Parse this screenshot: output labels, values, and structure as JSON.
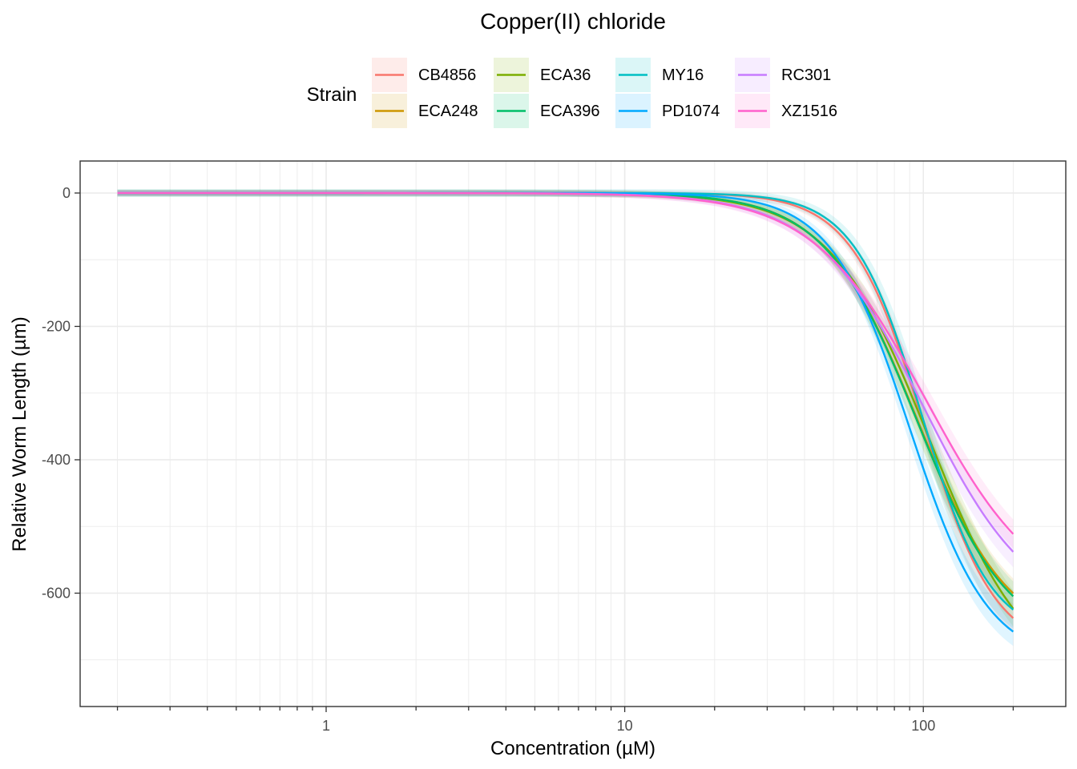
{
  "chart_data": {
    "type": "line",
    "title": "Copper(II) chloride",
    "xlabel": "Concentration (µM)",
    "ylabel": "Relative Worm Length (µm)",
    "x_scale": "log10",
    "xlim": [
      0.15,
      300
    ],
    "ylim": [
      -770,
      48
    ],
    "x_ticks": [
      1,
      10,
      100
    ],
    "x_tick_labels": [
      "1",
      "10",
      "100"
    ],
    "y_ticks": [
      0,
      -200,
      -400,
      -600
    ],
    "y_tick_labels": [
      "0",
      "-200",
      "-400",
      "-600"
    ],
    "grid": true,
    "legend": {
      "title": "Strain",
      "position": "top",
      "items": [
        "CB4856",
        "ECA248",
        "ECA36",
        "ECA396",
        "MY16",
        "PD1074",
        "RC301",
        "XZ1516"
      ]
    },
    "x_range": [
      0.2,
      200
    ],
    "series": [
      {
        "name": "CB4856",
        "color": "#F8766D",
        "model": "log-logistic",
        "upper": 0,
        "bottom": -690,
        "ec50": 100,
        "hill": 3.6,
        "band": 30
      },
      {
        "name": "ECA248",
        "color": "#CD9600",
        "model": "log-logistic",
        "upper": 0,
        "bottom": -675,
        "ec50": 95,
        "hill": 2.8,
        "band": 30
      },
      {
        "name": "ECA36",
        "color": "#7CAE00",
        "model": "log-logistic",
        "upper": 0,
        "bottom": -740,
        "ec50": 105,
        "hill": 2.6,
        "band": 35
      },
      {
        "name": "ECA396",
        "color": "#00BE67",
        "model": "log-logistic",
        "upper": 0,
        "bottom": -680,
        "ec50": 95,
        "hill": 2.8,
        "band": 30
      },
      {
        "name": "MY16",
        "color": "#00BFC4",
        "model": "log-logistic",
        "upper": 0,
        "bottom": -668,
        "ec50": 99,
        "hill": 3.8,
        "band": 40
      },
      {
        "name": "PD1074",
        "color": "#00A9FF",
        "model": "log-logistic",
        "upper": 0,
        "bottom": -705,
        "ec50": 90,
        "hill": 3.3,
        "band": 30
      },
      {
        "name": "RC301",
        "color": "#C77CFF",
        "model": "log-logistic",
        "upper": 0,
        "bottom": -640,
        "ec50": 100,
        "hill": 2.4,
        "band": 30
      },
      {
        "name": "XZ1516",
        "color": "#FF61CC",
        "model": "log-logistic",
        "upper": 0,
        "bottom": -620,
        "ec50": 102,
        "hill": 2.3,
        "band": 28
      }
    ]
  }
}
